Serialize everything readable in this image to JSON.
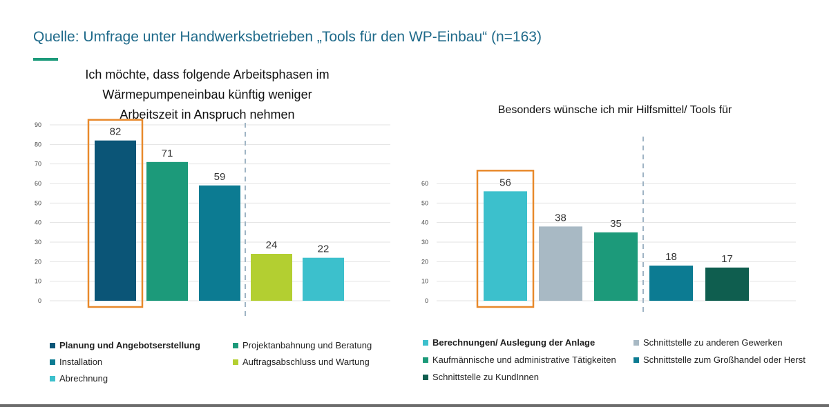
{
  "header": {
    "title": "Quelle: Umfrage unter Handwerksbetrieben „Tools für den WP-Einbau“ (n=163)",
    "accent_color": "#1c9a7a"
  },
  "chart_data": [
    {
      "type": "bar",
      "title": "Ich möchte, dass folgende Arbeitsphasen im Wärmepumpeneinbau künftig weniger Arbeitszeit in Anspruch nehmen",
      "title_lines": [
        "Ich möchte, dass folgende Arbeitsphasen im",
        "Wärmepumpeneinbau künftig weniger",
        "Arbeitszeit in Anspruch nehmen"
      ],
      "categories": [
        "Planung und Angebotserstellung",
        "Projektanbahnung und Beratung",
        "Installation",
        "Auftragsabschluss und Wartung",
        "Abrechnung"
      ],
      "values": [
        82,
        71,
        59,
        24,
        22
      ],
      "colors": [
        "#0b5577",
        "#1c9a7a",
        "#0c7b92",
        "#b3cf31",
        "#3cc0cc"
      ],
      "ylim": [
        0,
        90
      ],
      "yticks": [
        "0",
        "10",
        "20",
        "30",
        "40",
        "50",
        "60",
        "70",
        "80",
        "90"
      ],
      "highlighted": "Planung und Angebotserstellung",
      "legend": [
        {
          "label": "Planung und Angebotserstellung",
          "bold": true
        },
        {
          "label": "Projektanbahnung und Beratung",
          "bold": false
        },
        {
          "label": "Installation",
          "bold": false
        },
        {
          "label": "Auftragsabschluss und Wartung",
          "bold": false
        },
        {
          "label": "Abrechnung",
          "bold": false
        }
      ]
    },
    {
      "type": "bar",
      "title": "Besonders wünsche ich mir Hilfsmittel/ Tools für",
      "categories": [
        "Berechnungen/ Auslegung der Anlage",
        "Schnittstelle zu anderen Gewerken",
        "Kaufmännische und administrative Tätigkeiten",
        "Schnittstelle zum Großhandel oder Herst",
        "Schnittstelle zu KundInnen"
      ],
      "values": [
        56,
        38,
        35,
        18,
        17
      ],
      "colors": [
        "#3cc0cc",
        "#a8b9c4",
        "#1c9a7a",
        "#0c7b92",
        "#0f5e4f"
      ],
      "ylim": [
        0,
        60
      ],
      "yticks": [
        "0",
        "10",
        "20",
        "30",
        "40",
        "50",
        "60"
      ],
      "highlighted": "Berechnungen/ Auslegung der Anlage",
      "legend": [
        {
          "label": "Berechnungen/ Auslegung der Anlage",
          "bold": true
        },
        {
          "label": "Schnittstelle zu anderen Gewerken",
          "bold": false
        },
        {
          "label": "Kaufmännische und administrative Tätigkeiten",
          "bold": false
        },
        {
          "label": "Schnittstelle zum Großhandel oder Herst",
          "bold": false
        },
        {
          "label": "Schnittstelle zu KundInnen",
          "bold": false
        }
      ]
    }
  ],
  "style": {
    "highlight_color": "#e8892b",
    "divider_color": "#9fb4c4",
    "grid_color": "#e3e3e3",
    "value_label_color": "#333333",
    "tick_color": "#444444"
  }
}
